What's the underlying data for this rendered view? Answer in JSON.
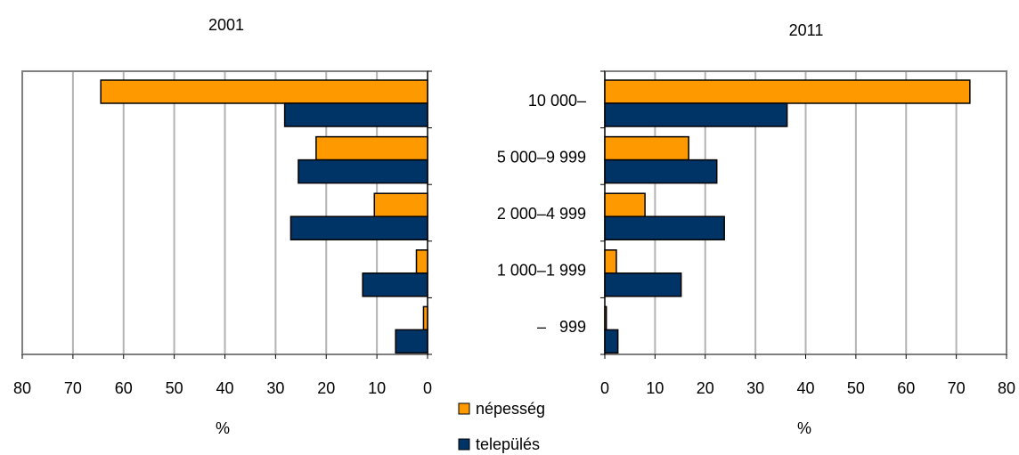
{
  "colors": {
    "nepesseg": "#ff9900",
    "telepules": "#003366",
    "grid": "#b3b3b3",
    "axis": "#808080"
  },
  "chart_data": {
    "type": "bar",
    "orientation": "horizontal",
    "categories": [
      "10 000–",
      "5 000–9 999",
      "2 000–4 999",
      "1 000–1 999",
      "–   999"
    ],
    "legend": [
      "népesség",
      "település"
    ],
    "legend_placement": "bottom-center",
    "panels": [
      {
        "title": "2001",
        "xlabel": "%",
        "xlim": [
          0,
          80
        ],
        "xticks": [
          80,
          70,
          60,
          50,
          40,
          30,
          20,
          10,
          0
        ],
        "reversed": true,
        "grid": true,
        "series": [
          {
            "name": "népesség",
            "values": [
              64.5,
              22,
              10.5,
              2.2,
              0.8
            ]
          },
          {
            "name": "település",
            "values": [
              28.2,
              25.5,
              27,
              12.8,
              6.3
            ]
          }
        ]
      },
      {
        "title": "2011",
        "xlabel": "%",
        "xlim": [
          0,
          80
        ],
        "xticks": [
          0,
          10,
          20,
          30,
          40,
          50,
          60,
          70,
          80
        ],
        "reversed": false,
        "grid": true,
        "series": [
          {
            "name": "népesség",
            "values": [
              72.7,
              16.7,
              8,
              2.3,
              0.3
            ]
          },
          {
            "name": "település",
            "values": [
              36.3,
              22.3,
              23.8,
              15.2,
              2.6
            ]
          }
        ]
      }
    ]
  }
}
